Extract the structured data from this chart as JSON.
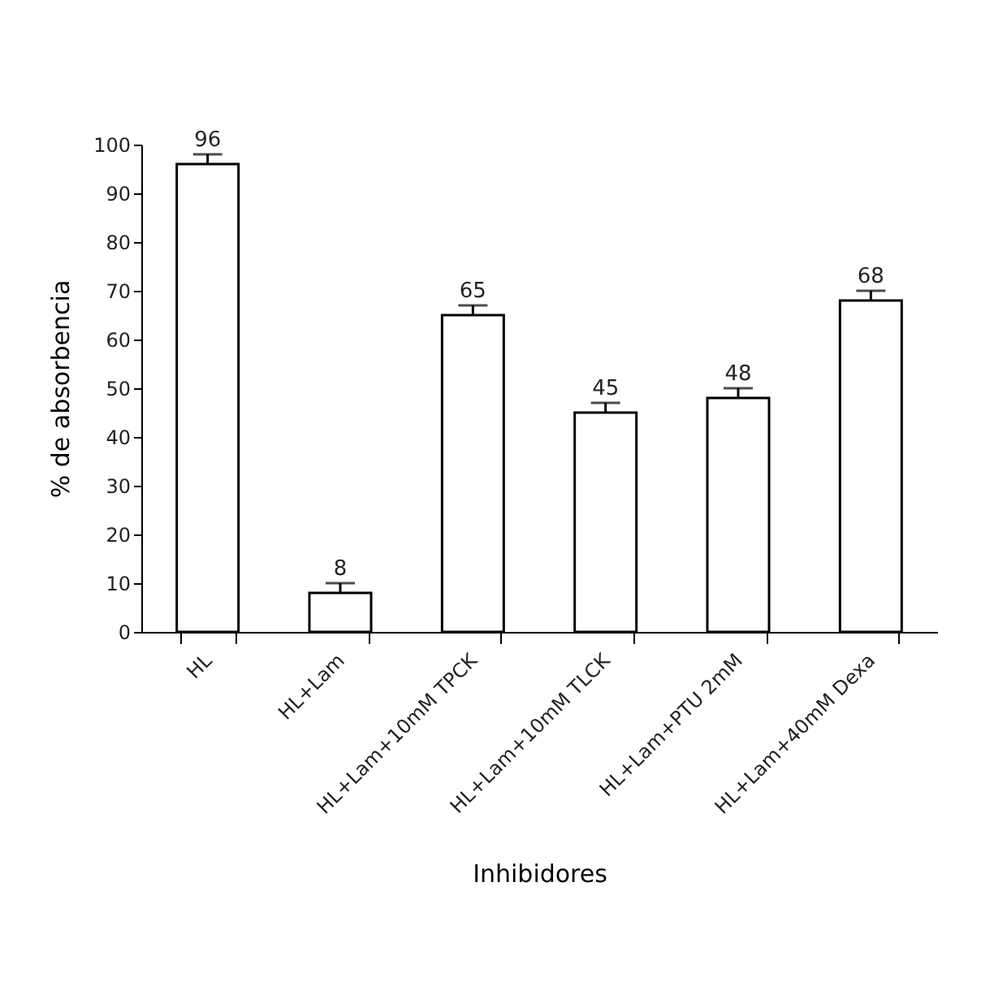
{
  "chart_data": {
    "type": "bar",
    "categories": [
      "HL",
      "HL+Lam",
      "HL+Lam+10mM TPCK",
      "HL+Lam+10mM TLCK",
      "HL+Lam+PTU 2mM",
      "HL+Lam+40mM Dexa"
    ],
    "values": [
      96,
      8,
      65,
      45,
      48,
      68
    ],
    "errors": [
      [
        96,
        98
      ],
      [
        8,
        10
      ],
      [
        65,
        67
      ],
      [
        45,
        47
      ],
      [
        48,
        50
      ],
      [
        68,
        70
      ]
    ],
    "color": "#ffffff",
    "xlabel": "Inhibidores",
    "ylabel": "% de absorbencia",
    "ylim": [
      0,
      100
    ],
    "yticks": [
      0,
      10,
      20,
      30,
      40,
      50,
      60,
      70,
      80,
      90,
      100
    ],
    "data_labels": true,
    "grid": false
  }
}
